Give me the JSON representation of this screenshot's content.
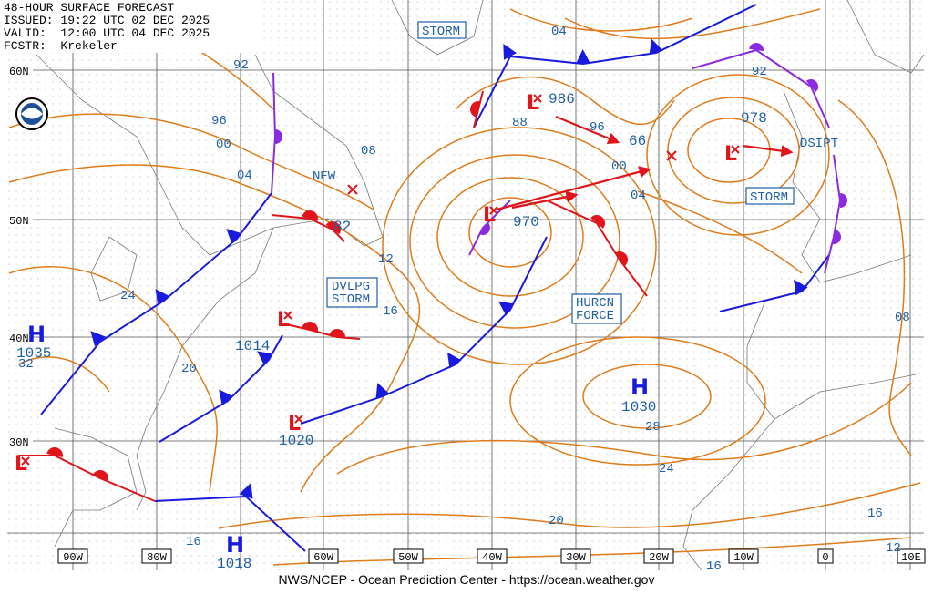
{
  "header": {
    "lines": [
      "48-HOUR SURFACE FORECAST",
      "ISSUED: 19:22 UTC 02 DEC 2025",
      "VALID:  12:00 UTC 04 DEC 2025",
      "FCSTR:  Krekeler"
    ]
  },
  "footer": "NWS/NCEP - Ocean Prediction Center - https://ocean.weather.gov",
  "latitude_labels": [
    "60N",
    "50N",
    "40N",
    "30N"
  ],
  "longitude_labels": [
    "90W",
    "80W",
    "60W",
    "50W",
    "40W",
    "30W",
    "20W",
    "10W",
    "0",
    "10E"
  ],
  "systems": [
    {
      "type": "L",
      "pressure": "986"
    },
    {
      "type": "L",
      "pressure": "970"
    },
    {
      "type": "L",
      "pressure": "978"
    },
    {
      "type": "L",
      "pressure": "1014"
    },
    {
      "type": "L",
      "pressure": "1020"
    },
    {
      "type": "H",
      "pressure": "1035"
    },
    {
      "type": "H",
      "pressure": "1030"
    },
    {
      "type": "H",
      "pressure": "1018"
    },
    {
      "type": "L"
    }
  ],
  "new_low": {
    "label": "NEW",
    "pressure": "82"
  },
  "track_pressure": "66",
  "warnings": [
    {
      "lines": [
        "STORM"
      ]
    },
    {
      "lines": [
        "DVLPG",
        "STORM"
      ]
    },
    {
      "lines": [
        "HURCN",
        "FORCE"
      ]
    },
    {
      "lines": [
        "STORM"
      ]
    }
  ],
  "dissipating": "DSIPT",
  "isobar_labels": [
    "92",
    "96",
    "00",
    "04",
    "08",
    "12",
    "16",
    "20",
    "24",
    "32",
    "04",
    "88",
    "96",
    "00",
    "04",
    "92",
    "28",
    "24",
    "20",
    "16",
    "16",
    "16",
    "12",
    "08"
  ]
}
